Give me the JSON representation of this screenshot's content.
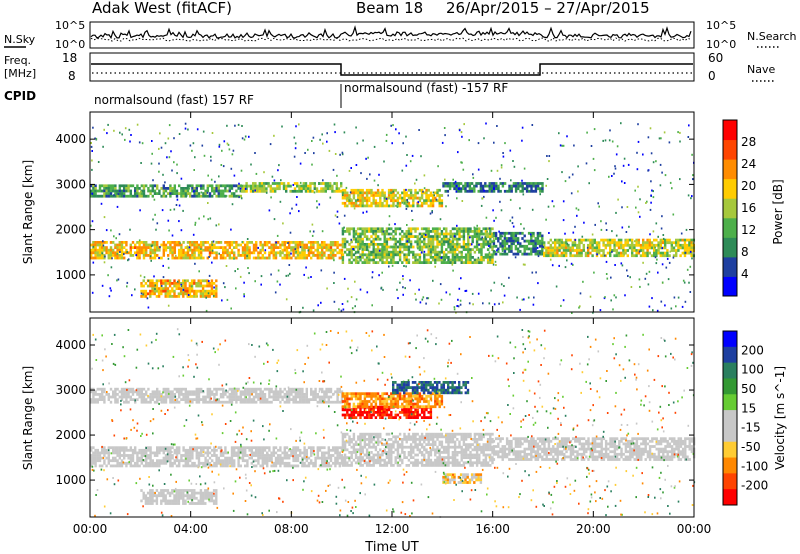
{
  "header": {
    "radar": "Adak West (fitACF)",
    "beam": "Beam 18",
    "dates": "26/Apr/2015 – 27/Apr/2015"
  },
  "top_panel": {
    "left_label": "N.Sky",
    "left_ticks": [
      "10^5",
      "10^0"
    ],
    "right_ticks": [
      "10^5",
      "10^0"
    ],
    "right_label": "N.Search"
  },
  "freq_panel": {
    "left_label_1": "Freq.",
    "left_label_2": "[MHz]",
    "left_ticks": [
      "18",
      "8"
    ],
    "right_ticks": [
      "60",
      "0"
    ],
    "right_label": "Nave"
  },
  "cpid": {
    "label": "CPID",
    "mode_1": "normalsound (fast)  157  RF",
    "mode_2": "normalsound (fast)  -157  RF"
  },
  "colors": {
    "power_scale": [
      "#0000ff",
      "#1e3fa0",
      "#2e8b57",
      "#4daf4a",
      "#a6c83c",
      "#ffcc00",
      "#ff8c00",
      "#ff4500",
      "#ff0000"
    ],
    "velocity_scale": [
      "#ff0000",
      "#ff4400",
      "#ff8800",
      "#ffcc33",
      "#c8c8c8",
      "#c8c8c8",
      "#66cc33",
      "#339933",
      "#2a7f5f",
      "#1e3fa0",
      "#0000ff"
    ]
  },
  "chart_data": [
    {
      "type": "heatmap",
      "title": "",
      "xlabel": "Time UT",
      "ylabel": "Slant Range [km]",
      "xlim": [
        "00:00",
        "24:00"
      ],
      "ylim": [
        180,
        4600
      ],
      "x_ticks": [
        "00:00",
        "04:00",
        "08:00",
        "12:00",
        "16:00",
        "20:00",
        "00:00"
      ],
      "y_ticks": [
        1000,
        2000,
        3000,
        4000
      ],
      "colorbar_label": "Power [dB]",
      "colorbar_ticks": [
        4,
        8,
        12,
        16,
        20,
        24,
        28
      ],
      "bands": [
        {
          "t_start": 0,
          "t_end": 10,
          "range_start": 1350,
          "range_end": 1750,
          "level": 20
        },
        {
          "t_start": 10,
          "t_end": 16,
          "range_start": 1300,
          "range_end": 2050,
          "level": 14
        },
        {
          "t_start": 16,
          "t_end": 18,
          "range_start": 1450,
          "range_end": 1950,
          "level": 9
        },
        {
          "t_start": 18,
          "t_end": 24,
          "range_start": 1400,
          "range_end": 1800,
          "level": 17
        },
        {
          "t_start": 0,
          "t_end": 6,
          "range_start": 2750,
          "range_end": 3000,
          "level": 11
        },
        {
          "t_start": 6,
          "t_end": 10,
          "range_start": 2850,
          "range_end": 3050,
          "level": 15
        },
        {
          "t_start": 10,
          "t_end": 14,
          "range_start": 2500,
          "range_end": 2900,
          "level": 18
        },
        {
          "t_start": 14,
          "t_end": 18,
          "range_start": 2850,
          "range_end": 3050,
          "level": 8
        },
        {
          "t_start": 2,
          "t_end": 5,
          "range_start": 500,
          "range_end": 900,
          "level": 21
        }
      ]
    },
    {
      "type": "heatmap",
      "title": "",
      "xlabel": "Time UT",
      "ylabel": "Slant Range [km]",
      "xlim": [
        "00:00",
        "24:00"
      ],
      "ylim": [
        180,
        4600
      ],
      "x_ticks": [
        "00:00",
        "04:00",
        "08:00",
        "12:00",
        "16:00",
        "20:00",
        "00:00"
      ],
      "y_ticks": [
        1000,
        2000,
        3000,
        4000
      ],
      "colorbar_label": "Velocity [m s^-1]",
      "colorbar_ticks": [
        200,
        100,
        50,
        15,
        -15,
        -50,
        -100,
        -200
      ],
      "bands": [
        {
          "t_start": 0,
          "t_end": 10,
          "range_start": 1300,
          "range_end": 1750,
          "level": 0
        },
        {
          "t_start": 10,
          "t_end": 16,
          "range_start": 1300,
          "range_end": 2050,
          "level": 0
        },
        {
          "t_start": 16,
          "t_end": 24,
          "range_start": 1450,
          "range_end": 1950,
          "level": 0
        },
        {
          "t_start": 0,
          "t_end": 10,
          "range_start": 2750,
          "range_end": 3050,
          "level": 0
        },
        {
          "t_start": 10,
          "t_end": 13.5,
          "range_start": 2400,
          "range_end": 2650,
          "level": -220
        },
        {
          "t_start": 10,
          "t_end": 14,
          "range_start": 2650,
          "range_end": 2950,
          "level": -70
        },
        {
          "t_start": 12,
          "t_end": 15,
          "range_start": 2950,
          "range_end": 3200,
          "level": 150
        },
        {
          "t_start": 14,
          "t_end": 15.5,
          "range_start": 950,
          "range_end": 1150,
          "level": -30
        },
        {
          "t_start": 2,
          "t_end": 5,
          "range_start": 500,
          "range_end": 800,
          "level": 0
        }
      ]
    }
  ]
}
